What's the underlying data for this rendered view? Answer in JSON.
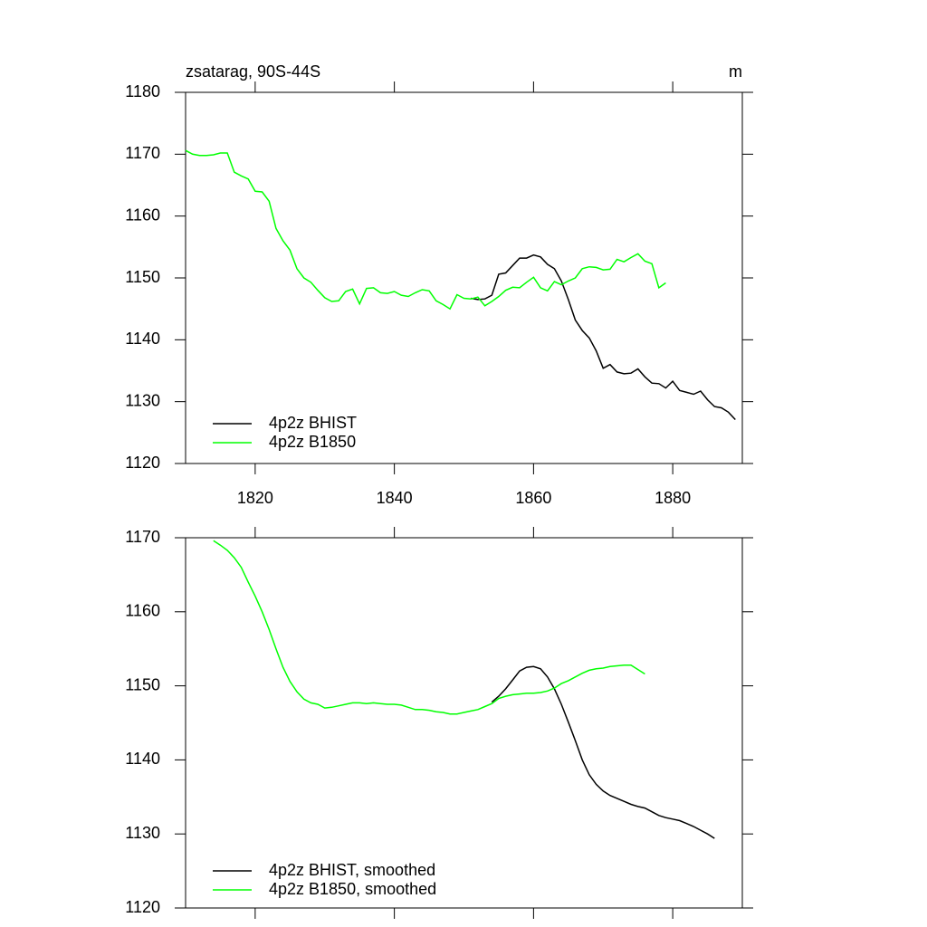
{
  "chart_data": [
    {
      "type": "line",
      "title": "zsatarag, 90S-44S",
      "units": "m",
      "xlim": [
        1810,
        1890
      ],
      "xticks": [
        1820,
        1840,
        1860,
        1880
      ],
      "ylim": [
        1120,
        1180
      ],
      "yticks": [
        1120,
        1130,
        1140,
        1150,
        1160,
        1170,
        1180
      ],
      "series": [
        {
          "name": "4p2z BHIST",
          "color": "#000000",
          "x": [
            1851,
            1852,
            1853,
            1854,
            1855,
            1856,
            1857,
            1858,
            1859,
            1860,
            1861,
            1862,
            1863,
            1864,
            1865,
            1866,
            1867,
            1868,
            1869,
            1870,
            1871,
            1872,
            1873,
            1874,
            1875,
            1876,
            1877,
            1878,
            1879,
            1880,
            1881,
            1882,
            1883,
            1884,
            1885,
            1886,
            1887,
            1888,
            1889
          ],
          "values": [
            1146.7,
            1146.5,
            1146.6,
            1147.2,
            1150.6,
            1150.8,
            1152.0,
            1153.2,
            1153.2,
            1153.7,
            1153.4,
            1152.2,
            1151.5,
            1149.5,
            1146.5,
            1143.2,
            1141.5,
            1140.3,
            1138.2,
            1135.4,
            1136.0,
            1134.8,
            1134.5,
            1134.6,
            1135.3,
            1134.0,
            1133.0,
            1132.9,
            1132.2,
            1133.3,
            1131.8,
            1131.5,
            1131.2,
            1131.7,
            1130.3,
            1129.2,
            1129.0,
            1128.3,
            1127.1
          ]
        },
        {
          "name": "4p2z B1850",
          "color": "#00ff00",
          "x": [
            1810,
            1811,
            1812,
            1813,
            1814,
            1815,
            1816,
            1817,
            1818,
            1819,
            1820,
            1821,
            1822,
            1823,
            1824,
            1825,
            1826,
            1827,
            1828,
            1829,
            1830,
            1831,
            1832,
            1833,
            1834,
            1835,
            1836,
            1837,
            1838,
            1839,
            1840,
            1841,
            1842,
            1843,
            1844,
            1845,
            1846,
            1847,
            1848,
            1849,
            1850,
            1851,
            1852,
            1853,
            1854,
            1855,
            1856,
            1857,
            1858,
            1859,
            1860,
            1861,
            1862,
            1863,
            1864,
            1865,
            1866,
            1867,
            1868,
            1869,
            1870,
            1871,
            1872,
            1873,
            1874,
            1875,
            1876,
            1877,
            1878,
            1879
          ],
          "values": [
            1170.6,
            1170.0,
            1169.8,
            1169.8,
            1169.9,
            1170.2,
            1170.2,
            1167.1,
            1166.5,
            1166.0,
            1164.0,
            1163.9,
            1162.4,
            1158.0,
            1156.0,
            1154.5,
            1151.5,
            1150.0,
            1149.3,
            1148.0,
            1146.8,
            1146.2,
            1146.3,
            1147.8,
            1148.2,
            1145.8,
            1148.3,
            1148.4,
            1147.6,
            1147.5,
            1147.8,
            1147.2,
            1147.0,
            1147.6,
            1148.1,
            1147.9,
            1146.3,
            1145.7,
            1145.0,
            1147.3,
            1146.7,
            1146.6,
            1146.9,
            1145.5,
            1146.2,
            1147.0,
            1148.0,
            1148.5,
            1148.4,
            1149.3,
            1150.1,
            1148.4,
            1147.9,
            1149.4,
            1148.9,
            1149.5,
            1150.0,
            1151.5,
            1151.8,
            1151.7,
            1151.3,
            1151.4,
            1153.0,
            1152.6,
            1153.3,
            1153.9,
            1152.7,
            1152.3,
            1148.4,
            1149.2
          ]
        }
      ]
    },
    {
      "type": "line",
      "xlim": [
        1810,
        1890
      ],
      "ylim": [
        1120,
        1170
      ],
      "yticks": [
        1120,
        1130,
        1140,
        1150,
        1160,
        1170
      ],
      "series": [
        {
          "name": "4p2z BHIST, smoothed",
          "color": "#000000",
          "x": [
            1854,
            1855,
            1856,
            1857,
            1858,
            1859,
            1860,
            1861,
            1862,
            1863,
            1864,
            1865,
            1866,
            1867,
            1868,
            1869,
            1870,
            1871,
            1872,
            1873,
            1874,
            1875,
            1876,
            1877,
            1878,
            1879,
            1880,
            1881,
            1882,
            1883,
            1884,
            1885,
            1886
          ],
          "values": [
            1147.8,
            1148.6,
            1149.6,
            1150.8,
            1152.0,
            1152.5,
            1152.6,
            1152.3,
            1151.2,
            1149.6,
            1147.5,
            1145.1,
            1142.6,
            1140.0,
            1138.0,
            1136.7,
            1135.8,
            1135.2,
            1134.8,
            1134.4,
            1134.0,
            1133.7,
            1133.5,
            1133.0,
            1132.5,
            1132.2,
            1132.0,
            1131.8,
            1131.4,
            1131.0,
            1130.5,
            1130.0,
            1129.4
          ]
        },
        {
          "name": "4p2z B1850, smoothed",
          "color": "#00ff00",
          "x": [
            1814,
            1815,
            1816,
            1817,
            1818,
            1819,
            1820,
            1821,
            1822,
            1823,
            1824,
            1825,
            1826,
            1827,
            1828,
            1829,
            1830,
            1831,
            1832,
            1833,
            1834,
            1835,
            1836,
            1837,
            1838,
            1839,
            1840,
            1841,
            1842,
            1843,
            1844,
            1845,
            1846,
            1847,
            1848,
            1849,
            1850,
            1851,
            1852,
            1853,
            1854,
            1855,
            1856,
            1857,
            1858,
            1859,
            1860,
            1861,
            1862,
            1863,
            1864,
            1865,
            1866,
            1867,
            1868,
            1869,
            1870,
            1871,
            1872,
            1873,
            1874,
            1875,
            1876
          ],
          "values": [
            1169.6,
            1169.0,
            1168.3,
            1167.3,
            1166.0,
            1164.0,
            1162.1,
            1160.0,
            1157.6,
            1155.0,
            1152.5,
            1150.6,
            1149.2,
            1148.2,
            1147.7,
            1147.5,
            1147.0,
            1147.1,
            1147.3,
            1147.5,
            1147.7,
            1147.7,
            1147.6,
            1147.7,
            1147.6,
            1147.5,
            1147.5,
            1147.4,
            1147.1,
            1146.8,
            1146.8,
            1146.7,
            1146.5,
            1146.4,
            1146.2,
            1146.2,
            1146.4,
            1146.6,
            1146.8,
            1147.2,
            1147.6,
            1148.3,
            1148.6,
            1148.8,
            1148.9,
            1149.0,
            1149.0,
            1149.1,
            1149.3,
            1149.7,
            1150.3,
            1150.7,
            1151.2,
            1151.7,
            1152.1,
            1152.3,
            1152.4,
            1152.6,
            1152.7,
            1152.8,
            1152.8,
            1152.2,
            1151.6
          ]
        }
      ]
    }
  ]
}
